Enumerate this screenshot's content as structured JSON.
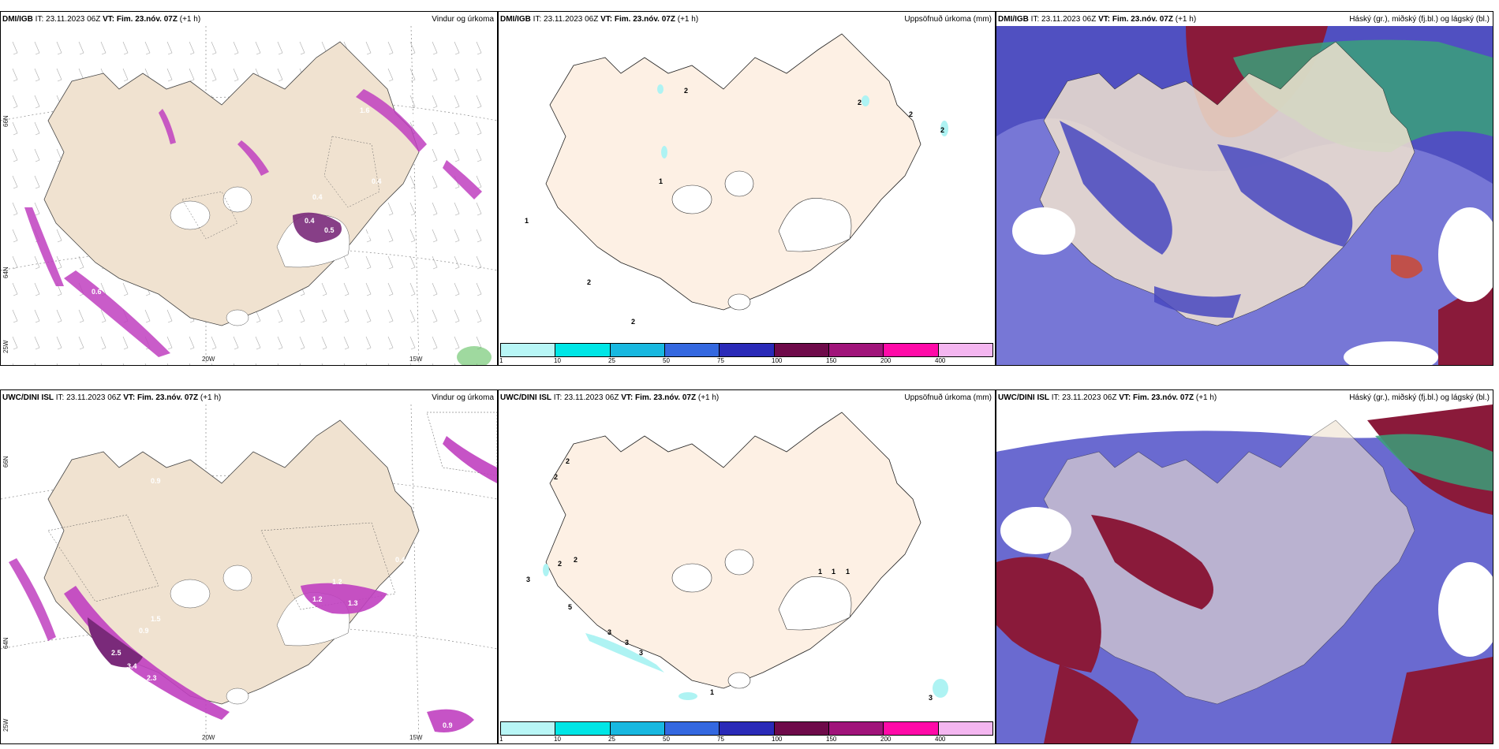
{
  "colors": {
    "land": "#f3e6d6",
    "glacier": "#ffffff",
    "precip_magenta": "#c040c0",
    "precip_purple": "#7a2a7a",
    "cyan": "#aef3f3",
    "blue": "#5050c8",
    "maroon": "#8a1a3a",
    "green": "#3aa07a"
  },
  "panels": [
    {
      "source": "DMI/IGB",
      "it_label": "IT:",
      "it_value": "23.11.2023 06Z",
      "vt_label": "VT:",
      "vt_value": "Fim. 23.nóv. 07Z",
      "offset": "(+1 h)",
      "title": "Vindur og úrkoma"
    },
    {
      "source": "DMI/IGB",
      "it_label": "IT:",
      "it_value": "23.11.2023 06Z",
      "vt_label": "VT:",
      "vt_value": "Fim. 23.nóv. 07Z",
      "offset": "(+1 h)",
      "title": "Uppsöfnuð úrkoma (mm)"
    },
    {
      "source": "DMI/IGB",
      "it_label": "IT:",
      "it_value": "23.11.2023 06Z",
      "vt_label": "VT:",
      "vt_value": "Fim. 23.nóv. 07Z",
      "offset": "(+1 h)",
      "title": "Háský (gr.), miðský (fj.bl.) og lágský (bl.)"
    },
    {
      "source": "UWC/DINI ISL",
      "it_label": "IT:",
      "it_value": "23.11.2023 06Z",
      "vt_label": "VT:",
      "vt_value": "Fim. 23.nóv. 07Z",
      "offset": "(+1 h)",
      "title": "Vindur og úrkoma"
    },
    {
      "source": "UWC/DINI ISL",
      "it_label": "IT:",
      "it_value": "23.11.2023 06Z",
      "vt_label": "VT:",
      "vt_value": "Fim. 23.nóv. 07Z",
      "offset": "(+1 h)",
      "title": "Uppsöfnuð úrkoma (mm)"
    },
    {
      "source": "UWC/DINI ISL",
      "it_label": "IT:",
      "it_value": "23.11.2023 06Z",
      "vt_label": "VT:",
      "vt_value": "Fim. 23.nóv. 07Z",
      "offset": "(+1 h)",
      "title": "Háský (gr.), miðský (fj.bl.) og lágský (bl.)"
    }
  ],
  "grid_labels": {
    "lat_66": "66N",
    "lat_64": "64N",
    "lon_25": "25W",
    "lon_20": "20W",
    "lon_15": "15W"
  },
  "precip_scale": {
    "ticks": [
      "1",
      "10",
      "25",
      "50",
      "75",
      "100",
      "150",
      "200",
      "400"
    ],
    "colors": [
      "#b8f6f6",
      "#00e6e6",
      "#18b8e0",
      "#3468e0",
      "#2a2ab8",
      "#6e0a4a",
      "#a0147a",
      "#ff0aa8",
      "#f4b6f0"
    ]
  },
  "wind_values": {
    "top": [
      "1.6",
      "1.4",
      "0.4",
      "0.5",
      "0.4",
      "0.4",
      "0.4",
      "0.6"
    ],
    "bottom": [
      "1.2",
      "1.3",
      "2.5",
      "3.4",
      "2.3",
      "0.9",
      "1.5",
      "1.2",
      "0.9",
      "0.4",
      "0.9"
    ]
  },
  "accum_values": {
    "top": [
      "2",
      "2",
      "2",
      "2",
      "1",
      "1",
      "2",
      "2"
    ],
    "bottom": [
      "2",
      "2",
      "2",
      "2",
      "3",
      "5",
      "3",
      "3",
      "3",
      "1",
      "1",
      "1",
      "1",
      "3"
    ]
  }
}
